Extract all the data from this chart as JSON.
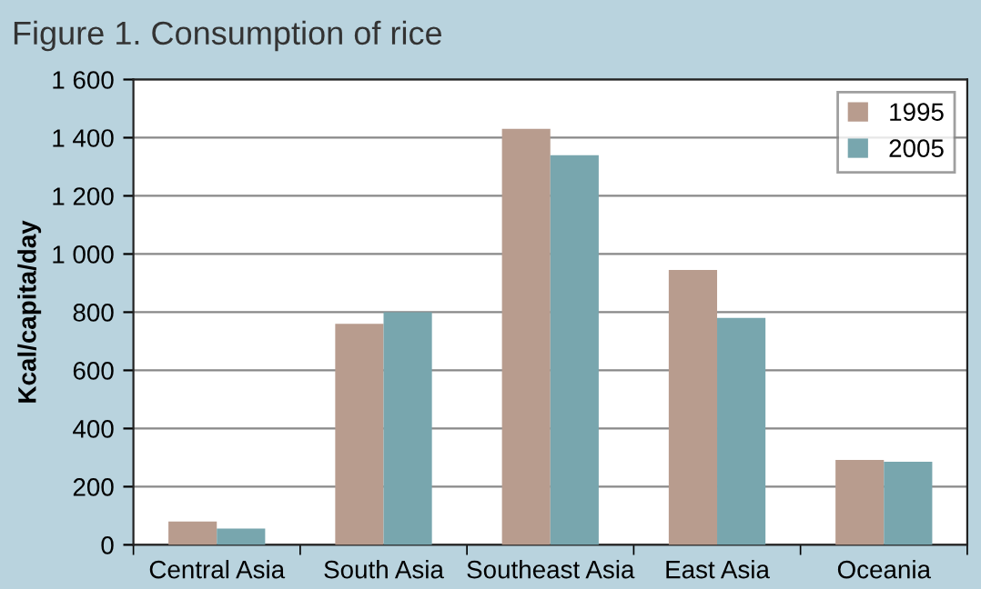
{
  "chart_data": {
    "type": "bar",
    "title": "Figure 1. Consumption of rice",
    "ylabel": "Kcal/capita/day",
    "categories": [
      "Central Asia",
      "South Asia",
      "Southeast Asia",
      "East Asia",
      "Oceania"
    ],
    "series": [
      {
        "name": "1995",
        "color": "#b89c8e",
        "values": [
          80,
          760,
          1430,
          945,
          292
        ]
      },
      {
        "name": "2005",
        "color": "#78a6ae",
        "values": [
          56,
          800,
          1340,
          780,
          286
        ]
      }
    ],
    "ylim": [
      0,
      1600
    ],
    "yticks": [
      0,
      200,
      400,
      600,
      800,
      {
        "value": 1000,
        "label": "1 000"
      },
      {
        "value": 1200,
        "label": "1 200"
      },
      {
        "value": 1400,
        "label": "1 400"
      },
      {
        "value": 1600,
        "label": "1 600"
      }
    ],
    "grid": "y",
    "legend": "top right"
  }
}
